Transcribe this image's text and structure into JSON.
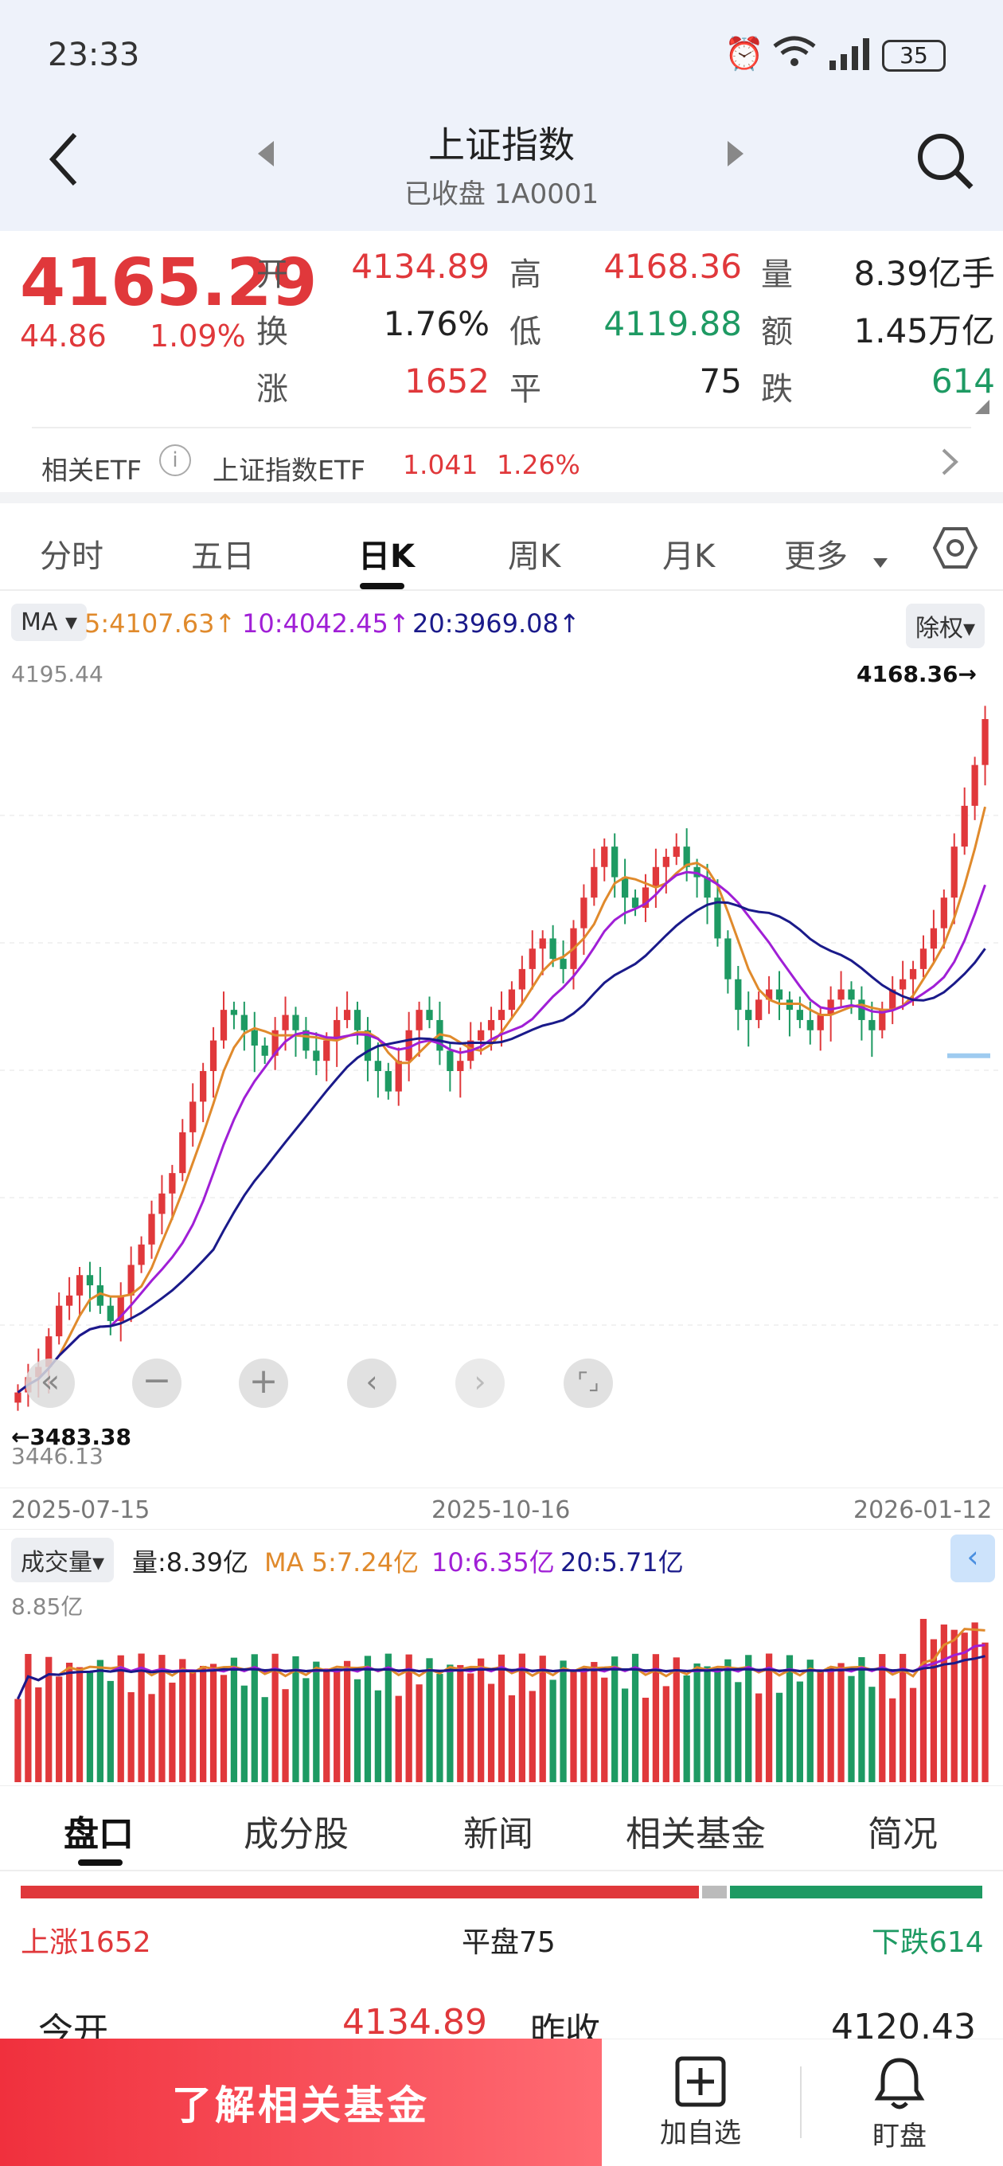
{
  "status": {
    "time": "23:33",
    "battery": "35"
  },
  "header": {
    "title": "上证指数",
    "subtitle": "已收盘 1A0001"
  },
  "quote": {
    "price": "4165.29",
    "change": "44.86",
    "change_pct": "1.09%",
    "rows": [
      [
        {
          "label": "开",
          "value": "4134.89",
          "color": "red"
        },
        {
          "label": "高",
          "value": "4168.36",
          "color": "red"
        },
        {
          "label": "量",
          "value": "8.39亿手",
          "color": "dark"
        }
      ],
      [
        {
          "label": "换",
          "value": "1.76%",
          "color": "dark"
        },
        {
          "label": "低",
          "value": "4119.88",
          "color": "green"
        },
        {
          "label": "额",
          "value": "1.45万亿",
          "color": "dark"
        }
      ],
      [
        {
          "label": "涨",
          "value": "1652",
          "color": "red"
        },
        {
          "label": "平",
          "value": "75",
          "color": "dark"
        },
        {
          "label": "跌",
          "value": "614",
          "color": "green"
        }
      ]
    ]
  },
  "etf": {
    "label": "相关ETF",
    "name": "上证指数ETF",
    "price": "1.041",
    "pct": "1.26%"
  },
  "chart_tabs": [
    "分时",
    "五日",
    "日K",
    "周K",
    "月K",
    "更多"
  ],
  "chart_tabs_active": 2,
  "ma": {
    "selector": "MA",
    "ma5": "5:4107.63↑",
    "ma10": "10:4042.45↑",
    "ma20": "20:3969.08↑",
    "fq": "除权"
  },
  "chart": {
    "top_label": "4195.44",
    "bottom_label": "3446.13",
    "max_label": "4168.36→",
    "min_label": "←3483.38",
    "dates": [
      "2025-07-15",
      "2025-10-16",
      "2026-01-12"
    ]
  },
  "volume": {
    "selector": "成交量",
    "vol": "量:8.39亿",
    "ma5": "MA 5:7.24亿",
    "ma10": "10:6.35亿",
    "ma20": "20:5.71亿",
    "top_label": "8.85亿"
  },
  "section_tabs": [
    "盘口",
    "成分股",
    "新闻",
    "相关基金",
    "简况"
  ],
  "breadth": {
    "up": "上涨1652",
    "flat": "平盘75",
    "down": "下跌614"
  },
  "open_row": {
    "open_label": "今开",
    "open_value": "4134.89",
    "prev_label": "昨收",
    "prev_value": "4120.43"
  },
  "bottom": {
    "cta": "了解相关基金",
    "add": "加自选",
    "watch": "盯盘"
  },
  "chart_data": {
    "type": "candlestick",
    "x_range": [
      "2025-07-15",
      "2026-01-12"
    ],
    "ylim": [
      3446.13,
      4195.44
    ],
    "close": [
      3505,
      3520,
      3530,
      3560,
      3590,
      3600,
      3620,
      3610,
      3590,
      3575,
      3600,
      3630,
      3650,
      3680,
      3700,
      3720,
      3760,
      3790,
      3820,
      3850,
      3880,
      3875,
      3860,
      3845,
      3835,
      3860,
      3875,
      3860,
      3840,
      3830,
      3850,
      3870,
      3880,
      3860,
      3830,
      3820,
      3800,
      3830,
      3860,
      3880,
      3870,
      3840,
      3820,
      3830,
      3850,
      3860,
      3870,
      3880,
      3900,
      3920,
      3940,
      3950,
      3930,
      3920,
      3960,
      3990,
      4020,
      4040,
      4010,
      3990,
      3980,
      4000,
      4020,
      4030,
      4040,
      4020,
      4010,
      3990,
      3950,
      3910,
      3880,
      3870,
      3890,
      3900,
      3890,
      3880,
      3870,
      3860,
      3875,
      3890,
      3900,
      3890,
      3870,
      3860,
      3880,
      3900,
      3910,
      3920,
      3940,
      3960,
      3990,
      4040,
      4080,
      4120,
      4165
    ]
  }
}
